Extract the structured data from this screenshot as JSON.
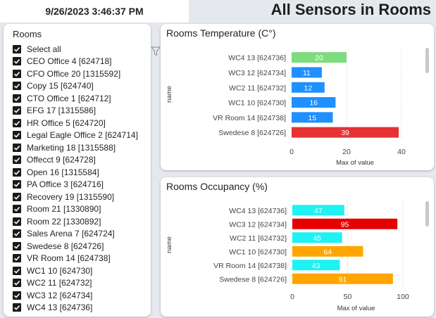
{
  "header": {
    "datetime": "9/26/2023 3:46:37 PM",
    "title": "All Sensors in Rooms"
  },
  "slicer": {
    "title": "Rooms",
    "items": [
      {
        "label": "Select all",
        "checked": true
      },
      {
        "label": "CEO Office 4 [624718]",
        "checked": true
      },
      {
        "label": "CFO Office 20 [1315592]",
        "checked": true
      },
      {
        "label": "Copy 15 [624740]",
        "checked": true
      },
      {
        "label": "CTO Office 1 [624712]",
        "checked": true
      },
      {
        "label": "EFG 17 [1315586]",
        "checked": true
      },
      {
        "label": "HR Office 5 [624720]",
        "checked": true
      },
      {
        "label": "Legal Eagle Office 2 [624714]",
        "checked": true
      },
      {
        "label": "Marketing 18 [1315588]",
        "checked": true
      },
      {
        "label": "Offecct 9 [624728]",
        "checked": true
      },
      {
        "label": "Open 16 [1315584]",
        "checked": true
      },
      {
        "label": "PA Office 3 [624716]",
        "checked": true
      },
      {
        "label": "Recovery 19 [1315590]",
        "checked": true
      },
      {
        "label": "Room 21 [1330890]",
        "checked": true
      },
      {
        "label": "Room 22 [1330892]",
        "checked": true
      },
      {
        "label": "Sales Arena 7 [624724]",
        "checked": true
      },
      {
        "label": "Swedese 8 [624726]",
        "checked": true
      },
      {
        "label": "VR Room 14 [624738]",
        "checked": true
      },
      {
        "label": "WC1 10 [624730]",
        "checked": true
      },
      {
        "label": "WC2 11 [624732]",
        "checked": true
      },
      {
        "label": "WC3 12 [624734]",
        "checked": true
      },
      {
        "label": "WC4 13 [624736]",
        "checked": true
      }
    ]
  },
  "icons": {
    "filter": "filter-icon",
    "checkbox": "checkmark-icon"
  },
  "chart_data": [
    {
      "type": "bar",
      "orientation": "horizontal",
      "title": "Rooms Temperature (C°)",
      "xlabel": "Max of value",
      "ylabel": "name",
      "categories": [
        "WC4 13 [624736]",
        "WC3 12 [624734]",
        "WC2 11 [624732]",
        "WC1 10 [624730]",
        "VR Room 14 [624738]",
        "Swedese 8 [624726]"
      ],
      "values": [
        20,
        11,
        12,
        16,
        15,
        39
      ],
      "colors": [
        "#7ddc7e",
        "#1e90ff",
        "#1e90ff",
        "#1e90ff",
        "#1e90ff",
        "#e63232"
      ],
      "xlim": [
        0,
        40
      ],
      "xticks": [
        0,
        20,
        40
      ],
      "grid": true
    },
    {
      "type": "bar",
      "orientation": "horizontal",
      "title": "Rooms Occupancy (%)",
      "xlabel": "Max of value",
      "ylabel": "name",
      "categories": [
        "WC4 13 [624736]",
        "WC3 12 [624734]",
        "WC2 11 [624732]",
        "WC1 10 [624730]",
        "VR Room 14 [624738]",
        "Swedese 8 [624726]"
      ],
      "values": [
        47,
        95,
        45,
        64,
        43,
        91
      ],
      "colors": [
        "#1ef2f2",
        "#e60000",
        "#1ef2f2",
        "#ffa500",
        "#1ef2f2",
        "#ffa500"
      ],
      "xlim": [
        0,
        100
      ],
      "xticks": [
        0,
        50,
        100
      ],
      "grid": true
    }
  ]
}
